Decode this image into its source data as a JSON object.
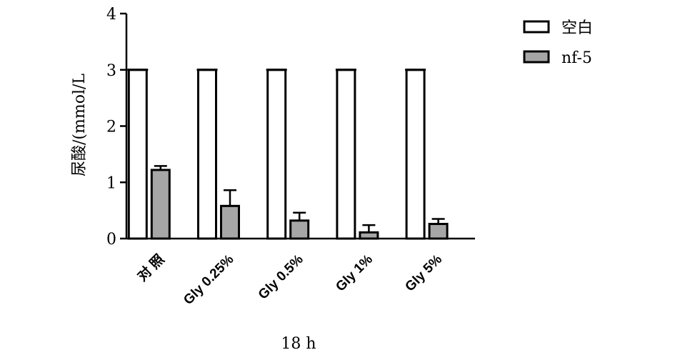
{
  "chart_data": {
    "type": "bar",
    "xlabel": "18 h",
    "ylabel": "尿酸/(mmol/L",
    "ylim": [
      0,
      4
    ],
    "yticks": [
      "0",
      "1",
      "2",
      "3",
      "4"
    ],
    "categories": [
      "对 照",
      "Gly 0.25%",
      "Gly 0.5%",
      "Gly 1%",
      "Gly 5%"
    ],
    "series": [
      {
        "name": "空白",
        "color": "#ffffff",
        "values": [
          3.0,
          3.0,
          3.0,
          3.0,
          3.0
        ],
        "errors": [
          0.0,
          0.0,
          0.0,
          0.0,
          0.0
        ]
      },
      {
        "name": "nf-5",
        "color": "#a6a6a6",
        "values": [
          1.22,
          0.58,
          0.32,
          0.11,
          0.26
        ],
        "errors": [
          0.07,
          0.28,
          0.14,
          0.13,
          0.09
        ]
      }
    ],
    "legend_position": "top-right",
    "grid": false
  }
}
